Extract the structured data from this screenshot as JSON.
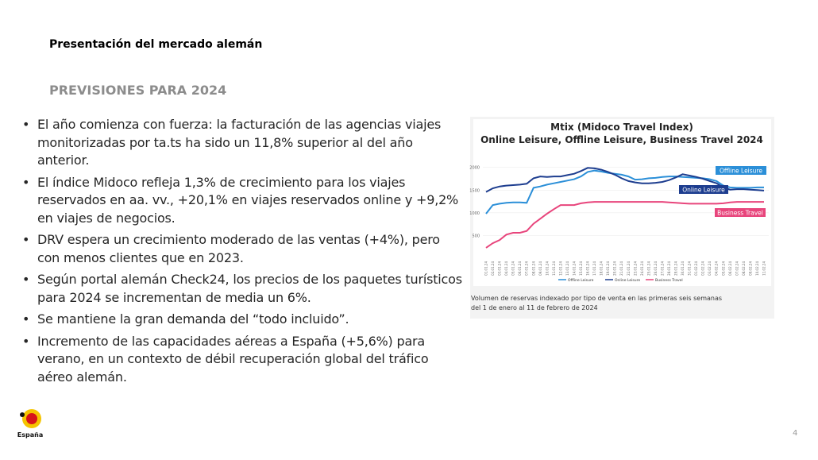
{
  "header": {
    "title": "Presentación del mercado alemán"
  },
  "section_title": "PREVISIONES PARA 2024",
  "bullets": [
    "El año comienza con fuerza: la facturación de las agencias viajes monitorizadas por ta.ts  ha sido un 11,8% superior al del año anterior.",
    "El índice Midoco refleja 1,3% de crecimiento para los viajes reservados en aa. vv., +20,1% en viajes reservados online y +9,2% en viajes de negocios.",
    "DRV espera un crecimiento moderado de las ventas (+4%), pero con menos clientes que en 2023.",
    "Según portal alemán Check24, los precios de los paquetes turísticos para 2024 se incrementan de media un 6%.",
    "Se mantiene la gran demanda del “todo incluido”.",
    "Incremento de las capacidades aéreas a España (+5,6%) para verano, en un contexto de débil recuperación global del tráfico aéreo alemán."
  ],
  "figure": {
    "chart_data": {
      "type": "line",
      "title": "Mtix (Midoco Travel Index)",
      "subtitle": "Online Leisure, Offline Leisure, Business Travel 2024",
      "categories": [
        "01.01.24",
        "02.01.24",
        "03.01.24",
        "04.01.24",
        "05.01.24",
        "06.01.24",
        "07.01.24",
        "08.01.24",
        "09.01.24",
        "10.01.24",
        "11.01.24",
        "12.01.24",
        "13.01.24",
        "14.01.24",
        "15.01.24",
        "16.01.24",
        "17.01.24",
        "18.01.24",
        "19.01.24",
        "20.01.24",
        "21.01.24",
        "22.01.24",
        "23.01.24",
        "24.01.24",
        "25.01.24",
        "26.01.24",
        "27.01.24",
        "28.01.24",
        "29.01.24",
        "30.01.24",
        "31.01.24",
        "01.02.24",
        "02.02.24",
        "03.02.24",
        "04.02.24",
        "05.02.24",
        "06.02.24",
        "07.02.24",
        "08.02.24",
        "09.02.24",
        "10.02.24",
        "11.02.24"
      ],
      "series": [
        {
          "name": "Offline Leisure",
          "color": "#2b8fd8",
          "values": [
            980,
            1170,
            1200,
            1220,
            1230,
            1230,
            1220,
            1550,
            1580,
            1620,
            1650,
            1680,
            1710,
            1740,
            1800,
            1900,
            1930,
            1910,
            1880,
            1860,
            1840,
            1800,
            1730,
            1740,
            1760,
            1770,
            1790,
            1800,
            1800,
            1790,
            1780,
            1770,
            1760,
            1740,
            1700,
            1600,
            1560,
            1550,
            1550,
            1550,
            1560,
            1560
          ]
        },
        {
          "name": "Online Leisure",
          "color": "#1d3d8f",
          "values": [
            1460,
            1540,
            1580,
            1600,
            1610,
            1620,
            1640,
            1760,
            1800,
            1790,
            1800,
            1800,
            1830,
            1860,
            1920,
            1990,
            1980,
            1950,
            1900,
            1840,
            1760,
            1700,
            1670,
            1650,
            1650,
            1660,
            1680,
            1720,
            1780,
            1850,
            1820,
            1790,
            1750,
            1700,
            1650,
            1560,
            1510,
            1520,
            1520,
            1510,
            1500,
            1490
          ]
        },
        {
          "name": "Business Travel",
          "color": "#e8457c",
          "values": [
            230,
            330,
            400,
            520,
            560,
            560,
            600,
            760,
            870,
            980,
            1080,
            1170,
            1170,
            1170,
            1210,
            1230,
            1240,
            1240,
            1240,
            1240,
            1240,
            1240,
            1240,
            1240,
            1240,
            1240,
            1240,
            1230,
            1220,
            1210,
            1200,
            1200,
            1200,
            1200,
            1200,
            1210,
            1230,
            1240,
            1240,
            1240,
            1240,
            1240
          ]
        }
      ],
      "ylim": [
        0,
        2100
      ],
      "yticks": [
        500,
        1000,
        1500,
        2000
      ],
      "grid": true
    },
    "caption": "Volumen de reservas indexado por tipo de venta en las primeras seis semanas del 1 de enero al 11 de febrero de 2024"
  },
  "logo": "España",
  "page_number": "4"
}
